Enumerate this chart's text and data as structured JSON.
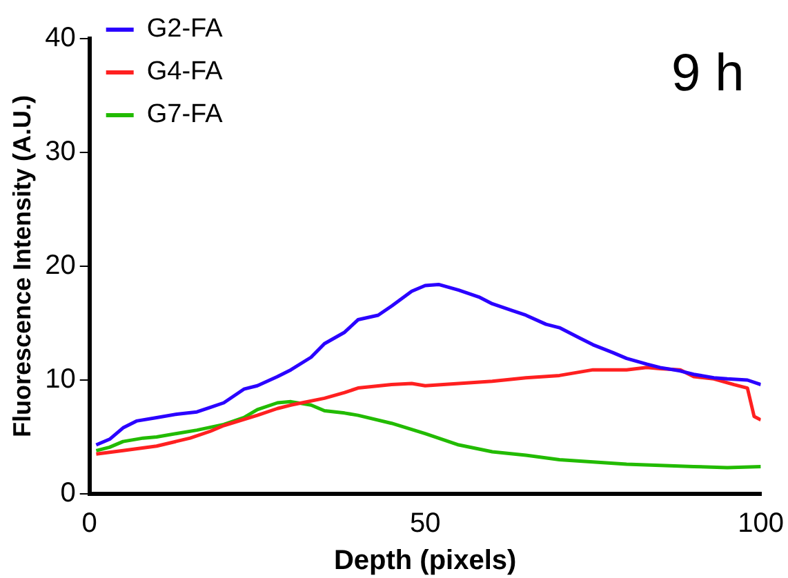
{
  "chart_data": {
    "type": "line",
    "xlabel": "Depth (pixels)",
    "ylabel": "Fluorescence Intensity (A.U.)",
    "annotations": [
      "9 h"
    ],
    "legend": "top left",
    "grid": false,
    "marker": "none",
    "line_style": "solid",
    "xlim": [
      0,
      100
    ],
    "xticks": [
      0,
      50,
      100
    ],
    "ylim": [
      0,
      40
    ],
    "yticks": [
      0,
      10,
      20,
      30,
      40
    ],
    "series": [
      {
        "name": "G2-FA",
        "color": "#2a00ff",
        "x": [
          1,
          3,
          5,
          7,
          10,
          13,
          16,
          18,
          20,
          23,
          25,
          28,
          30,
          33,
          35,
          38,
          40,
          43,
          45,
          48,
          50,
          52,
          55,
          58,
          60,
          63,
          65,
          68,
          70,
          73,
          75,
          78,
          80,
          83,
          85,
          88,
          90,
          93,
          95,
          98,
          100
        ],
        "values": [
          4.3,
          4.8,
          5.8,
          6.4,
          6.7,
          7.0,
          7.2,
          7.6,
          8.0,
          9.2,
          9.5,
          10.3,
          10.9,
          12.0,
          13.2,
          14.2,
          15.3,
          15.7,
          16.5,
          17.8,
          18.3,
          18.4,
          17.9,
          17.3,
          16.7,
          16.1,
          15.7,
          14.9,
          14.6,
          13.7,
          13.1,
          12.4,
          11.9,
          11.4,
          11.1,
          10.8,
          10.5,
          10.2,
          10.1,
          10.0,
          9.6
        ]
      },
      {
        "name": "G4-FA",
        "color": "#ff2020",
        "x": [
          1,
          5,
          10,
          15,
          18,
          20,
          25,
          28,
          30,
          35,
          38,
          40,
          45,
          48,
          50,
          55,
          60,
          65,
          70,
          75,
          80,
          83,
          85,
          88,
          90,
          93,
          96,
          98,
          99,
          100
        ],
        "values": [
          3.5,
          3.8,
          4.2,
          4.9,
          5.5,
          6.0,
          6.9,
          7.5,
          7.8,
          8.4,
          8.9,
          9.3,
          9.6,
          9.7,
          9.5,
          9.7,
          9.9,
          10.2,
          10.4,
          10.9,
          10.9,
          11.1,
          11.0,
          10.9,
          10.3,
          10.1,
          9.6,
          9.3,
          6.8,
          6.5
        ]
      },
      {
        "name": "G7-FA",
        "color": "#22bb00",
        "x": [
          1,
          3,
          5,
          8,
          10,
          13,
          16,
          20,
          23,
          25,
          28,
          30,
          33,
          35,
          38,
          40,
          45,
          50,
          55,
          60,
          65,
          70,
          75,
          80,
          85,
          90,
          95,
          100
        ],
        "values": [
          3.8,
          4.1,
          4.6,
          4.9,
          5.0,
          5.3,
          5.6,
          6.1,
          6.7,
          7.4,
          8.0,
          8.1,
          7.8,
          7.3,
          7.1,
          6.9,
          6.2,
          5.3,
          4.3,
          3.7,
          3.4,
          3.0,
          2.8,
          2.6,
          2.5,
          2.4,
          2.3,
          2.4
        ]
      }
    ]
  }
}
